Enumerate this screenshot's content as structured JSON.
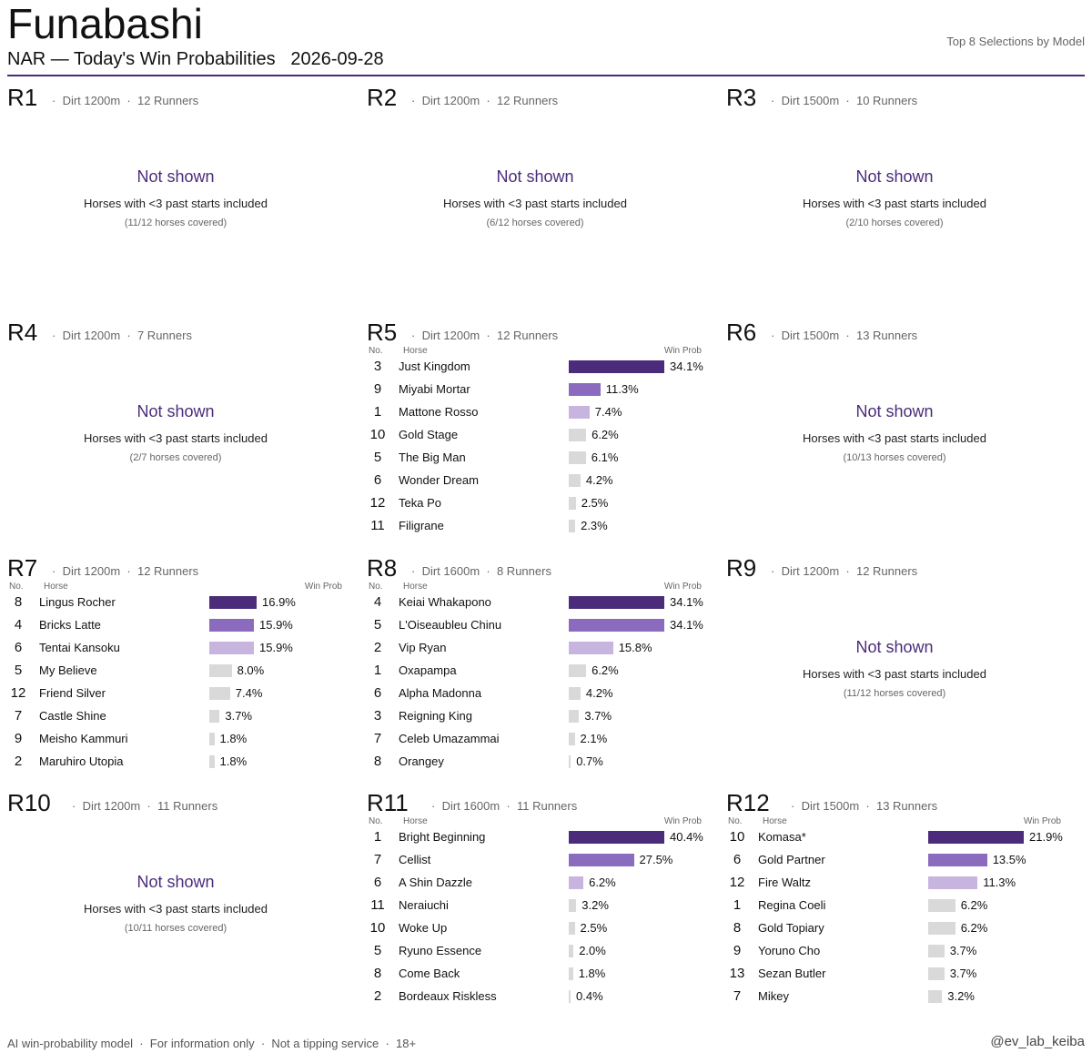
{
  "header": {
    "venue": "Funabashi",
    "subtitle": "NAR — Today's Win Probabilities",
    "date": "2026-09-28",
    "right_note": "Top 8 Selections by Model"
  },
  "footer": {
    "disclaimer": "AI win-probability model  ·  For information only  ·  Not a tipping service  ·  18+",
    "handle": "@ev_lab_keiba"
  },
  "labels": {
    "col_no": "No.",
    "col_horse": "Horse",
    "col_prob": "Win Prob",
    "not_shown": "Not shown",
    "not_shown_reason": "Horses with <3 past starts included",
    "sep": "·"
  },
  "colors": {
    "rank1": "#4b2c7a",
    "rank2": "#8b6bbd",
    "rank3": "#c7b4df",
    "other": "#d9d9d9",
    "accent": "#4b2c7a"
  },
  "chart_data": [
    {
      "type": "bar",
      "race": "R1",
      "surface": "Dirt 1200m",
      "runners": "12 Runners",
      "shown": false,
      "coverage": "(11/12 horses covered)"
    },
    {
      "type": "bar",
      "race": "R2",
      "surface": "Dirt 1200m",
      "runners": "12 Runners",
      "shown": false,
      "coverage": "(6/12 horses covered)"
    },
    {
      "type": "bar",
      "race": "R3",
      "surface": "Dirt 1500m",
      "runners": "10 Runners",
      "shown": false,
      "coverage": "(2/10 horses covered)"
    },
    {
      "type": "bar",
      "race": "R4",
      "surface": "Dirt 1200m",
      "runners": "7 Runners",
      "shown": false,
      "coverage": "(2/7 horses covered)"
    },
    {
      "type": "bar",
      "race": "R5",
      "surface": "Dirt 1200m",
      "runners": "12 Runners",
      "shown": true,
      "xlim": [
        0,
        34.1
      ],
      "entries": [
        {
          "no": "3",
          "horse": "Just Kingdom",
          "prob": 34.1,
          "label": "34.1%"
        },
        {
          "no": "9",
          "horse": "Miyabi Mortar",
          "prob": 11.3,
          "label": "11.3%"
        },
        {
          "no": "1",
          "horse": "Mattone Rosso",
          "prob": 7.4,
          "label": "7.4%"
        },
        {
          "no": "10",
          "horse": "Gold Stage",
          "prob": 6.2,
          "label": "6.2%"
        },
        {
          "no": "5",
          "horse": "The Big Man",
          "prob": 6.1,
          "label": "6.1%"
        },
        {
          "no": "6",
          "horse": "Wonder Dream",
          "prob": 4.2,
          "label": "4.2%"
        },
        {
          "no": "12",
          "horse": "Teka Po",
          "prob": 2.5,
          "label": "2.5%"
        },
        {
          "no": "11",
          "horse": "Filigrane",
          "prob": 2.3,
          "label": "2.3%"
        }
      ]
    },
    {
      "type": "bar",
      "race": "R6",
      "surface": "Dirt 1500m",
      "runners": "13 Runners",
      "shown": false,
      "coverage": "(10/13 horses covered)"
    },
    {
      "type": "bar",
      "race": "R7",
      "surface": "Dirt 1200m",
      "runners": "12 Runners",
      "shown": true,
      "xlim": [
        0,
        34.1
      ],
      "entries": [
        {
          "no": "8",
          "horse": "Lingus Rocher",
          "prob": 16.9,
          "label": "16.9%"
        },
        {
          "no": "4",
          "horse": "Bricks Latte",
          "prob": 15.9,
          "label": "15.9%"
        },
        {
          "no": "6",
          "horse": "Tentai Kansoku",
          "prob": 15.9,
          "label": "15.9%"
        },
        {
          "no": "5",
          "horse": "My Believe",
          "prob": 8.0,
          "label": "8.0%"
        },
        {
          "no": "12",
          "horse": "Friend Silver",
          "prob": 7.4,
          "label": "7.4%"
        },
        {
          "no": "7",
          "horse": "Castle Shine",
          "prob": 3.7,
          "label": "3.7%"
        },
        {
          "no": "9",
          "horse": "Meisho Kammuri",
          "prob": 1.8,
          "label": "1.8%"
        },
        {
          "no": "2",
          "horse": "Maruhiro Utopia",
          "prob": 1.8,
          "label": "1.8%"
        }
      ]
    },
    {
      "type": "bar",
      "race": "R8",
      "surface": "Dirt 1600m",
      "runners": "8 Runners",
      "shown": true,
      "xlim": [
        0,
        34.1
      ],
      "entries": [
        {
          "no": "4",
          "horse": "Keiai Whakapono",
          "prob": 34.1,
          "label": "34.1%"
        },
        {
          "no": "5",
          "horse": "L'Oiseaubleu Chinu",
          "prob": 34.1,
          "label": "34.1%"
        },
        {
          "no": "2",
          "horse": "Vip Ryan",
          "prob": 15.8,
          "label": "15.8%"
        },
        {
          "no": "1",
          "horse": "Oxapampa",
          "prob": 6.2,
          "label": "6.2%"
        },
        {
          "no": "6",
          "horse": "Alpha Madonna",
          "prob": 4.2,
          "label": "4.2%"
        },
        {
          "no": "3",
          "horse": "Reigning King",
          "prob": 3.7,
          "label": "3.7%"
        },
        {
          "no": "7",
          "horse": "Celeb Umazammai",
          "prob": 2.1,
          "label": "2.1%"
        },
        {
          "no": "8",
          "horse": "Orangey",
          "prob": 0.7,
          "label": "0.7%"
        }
      ]
    },
    {
      "type": "bar",
      "race": "R9",
      "surface": "Dirt 1200m",
      "runners": "12 Runners",
      "shown": false,
      "coverage": "(11/12 horses covered)"
    },
    {
      "type": "bar",
      "race": "R10",
      "surface": "Dirt 1200m",
      "runners": "11 Runners",
      "shown": false,
      "coverage": "(10/11 horses covered)"
    },
    {
      "type": "bar",
      "race": "R11",
      "surface": "Dirt 1600m",
      "runners": "11 Runners",
      "shown": true,
      "xlim": [
        0,
        40.4
      ],
      "entries": [
        {
          "no": "1",
          "horse": "Bright Beginning",
          "prob": 40.4,
          "label": "40.4%"
        },
        {
          "no": "7",
          "horse": "Cellist",
          "prob": 27.5,
          "label": "27.5%"
        },
        {
          "no": "6",
          "horse": "A Shin Dazzle",
          "prob": 6.2,
          "label": "6.2%"
        },
        {
          "no": "11",
          "horse": "Neraiuchi",
          "prob": 3.2,
          "label": "3.2%"
        },
        {
          "no": "10",
          "horse": "Woke Up",
          "prob": 2.5,
          "label": "2.5%"
        },
        {
          "no": "5",
          "horse": "Ryuno Essence",
          "prob": 2.0,
          "label": "2.0%"
        },
        {
          "no": "8",
          "horse": "Come Back",
          "prob": 1.8,
          "label": "1.8%"
        },
        {
          "no": "2",
          "horse": "Bordeaux Riskless",
          "prob": 0.4,
          "label": "0.4%"
        }
      ]
    },
    {
      "type": "bar",
      "race": "R12",
      "surface": "Dirt 1500m",
      "runners": "13 Runners",
      "shown": true,
      "xlim": [
        0,
        21.9
      ],
      "entries": [
        {
          "no": "10",
          "horse": "Komasa*",
          "prob": 21.9,
          "label": "21.9%"
        },
        {
          "no": "6",
          "horse": "Gold Partner",
          "prob": 13.5,
          "label": "13.5%"
        },
        {
          "no": "12",
          "horse": "Fire Waltz",
          "prob": 11.3,
          "label": "11.3%"
        },
        {
          "no": "1",
          "horse": "Regina Coeli",
          "prob": 6.2,
          "label": "6.2%"
        },
        {
          "no": "8",
          "horse": "Gold Topiary",
          "prob": 6.2,
          "label": "6.2%"
        },
        {
          "no": "9",
          "horse": "Yoruno Cho",
          "prob": 3.7,
          "label": "3.7%"
        },
        {
          "no": "13",
          "horse": "Sezan Butler",
          "prob": 3.7,
          "label": "3.7%"
        },
        {
          "no": "7",
          "horse": "Mikey",
          "prob": 3.2,
          "label": "3.2%"
        }
      ]
    }
  ]
}
